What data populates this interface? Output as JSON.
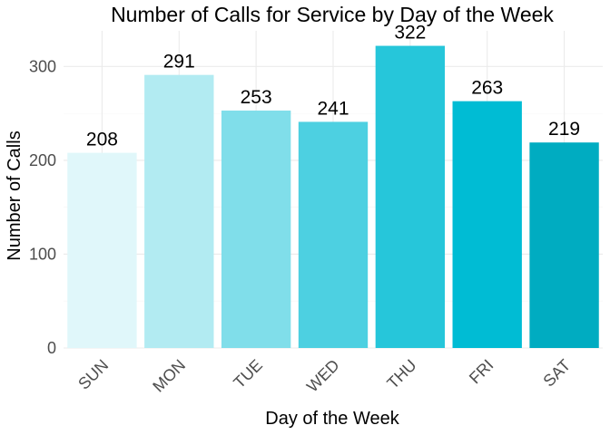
{
  "chart_data": {
    "type": "bar",
    "title": "Number of Calls for Service by Day of the Week",
    "xlabel": "Day of the Week",
    "ylabel": "Number of Calls",
    "categories": [
      "SUN",
      "MON",
      "TUE",
      "WED",
      "THU",
      "FRI",
      "SAT"
    ],
    "values": [
      208,
      291,
      253,
      241,
      322,
      263,
      219
    ],
    "colors": [
      "#e0f7fa",
      "#b2ebf2",
      "#80deea",
      "#4dd0e1",
      "#26c6da",
      "#00bcd4",
      "#00acc1"
    ],
    "yticks": [
      0,
      100,
      200,
      300
    ],
    "ylim": [
      0,
      338
    ],
    "grid": true,
    "legend": "none"
  }
}
